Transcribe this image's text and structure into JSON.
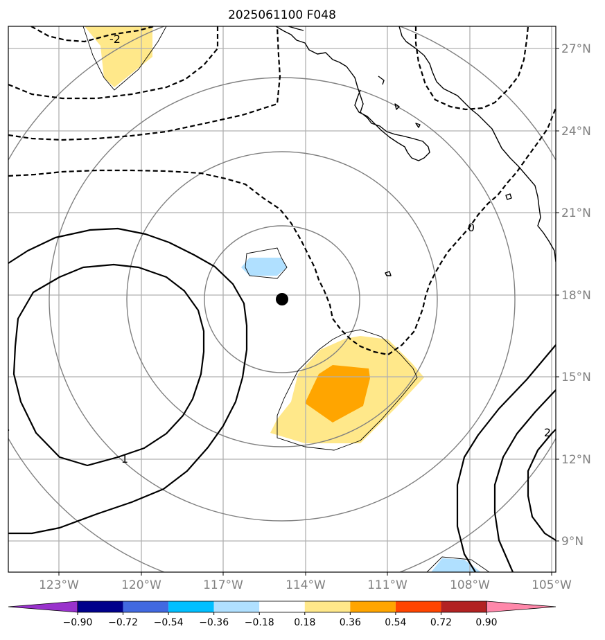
{
  "title": "2025061100 F048",
  "map": {
    "lat_labels": [
      {
        "text": "27°N",
        "lat": 27
      },
      {
        "text": "24°N",
        "lat": 24
      },
      {
        "text": "21°N",
        "lat": 21
      },
      {
        "text": "18°N",
        "lat": 18
      },
      {
        "text": "15°N",
        "lat": 15
      },
      {
        "text": "12°N",
        "lat": 12
      },
      {
        "text": "9°N",
        "lat": 9
      }
    ],
    "lon_labels": [
      {
        "text": "123°W",
        "lon": -123
      },
      {
        "text": "120°W",
        "lon": -120
      },
      {
        "text": "117°W",
        "lon": -117
      },
      {
        "text": "114°W",
        "lon": -114
      },
      {
        "text": "111°W",
        "lon": -111
      },
      {
        "text": "108°W",
        "lon": -108
      },
      {
        "text": "105°W",
        "lon": -105
      }
    ],
    "storm_center": {
      "lat": 17.85,
      "lon": -114.8
    },
    "contour_labels": [
      "-2",
      "0",
      "1",
      "2"
    ]
  },
  "colorbar": {
    "ticks": [
      "−0.90",
      "−0.72",
      "−0.54",
      "−0.36",
      "−0.18",
      "0.18",
      "0.36",
      "0.54",
      "0.72",
      "0.90"
    ],
    "colors": [
      "#9932CC",
      "#00008B",
      "#4169E1",
      "#00BFFF",
      "#B0E0FF",
      "#FFFFFF",
      "#FFE88A",
      "#FFA500",
      "#FF4500",
      "#B22222",
      "#FF88AA"
    ]
  }
}
